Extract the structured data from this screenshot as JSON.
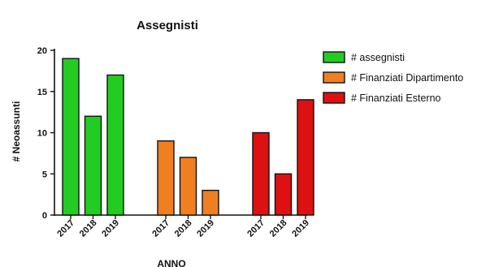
{
  "chart_data": {
    "type": "bar",
    "title": "Assegnisti",
    "xlabel": "ANNO",
    "ylabel": "# Neoassunti",
    "ylim": [
      0,
      20
    ],
    "yticks": [
      0,
      5,
      10,
      15,
      20
    ],
    "grid": false,
    "legend_position": "right",
    "series": [
      {
        "name": "# assegnisti",
        "color": "#22cc22",
        "categories": [
          "2017",
          "2018",
          "2019"
        ],
        "values": [
          19,
          12,
          17
        ]
      },
      {
        "name": "# Finanziati Dipartimento",
        "color": "#f07f22",
        "categories": [
          "2017",
          "2018",
          "2019"
        ],
        "values": [
          9,
          7,
          3
        ]
      },
      {
        "name": "# Finanziati Esterno",
        "color": "#dd1111",
        "categories": [
          "2017",
          "2018",
          "2019"
        ],
        "values": [
          10,
          5,
          14
        ]
      }
    ]
  }
}
